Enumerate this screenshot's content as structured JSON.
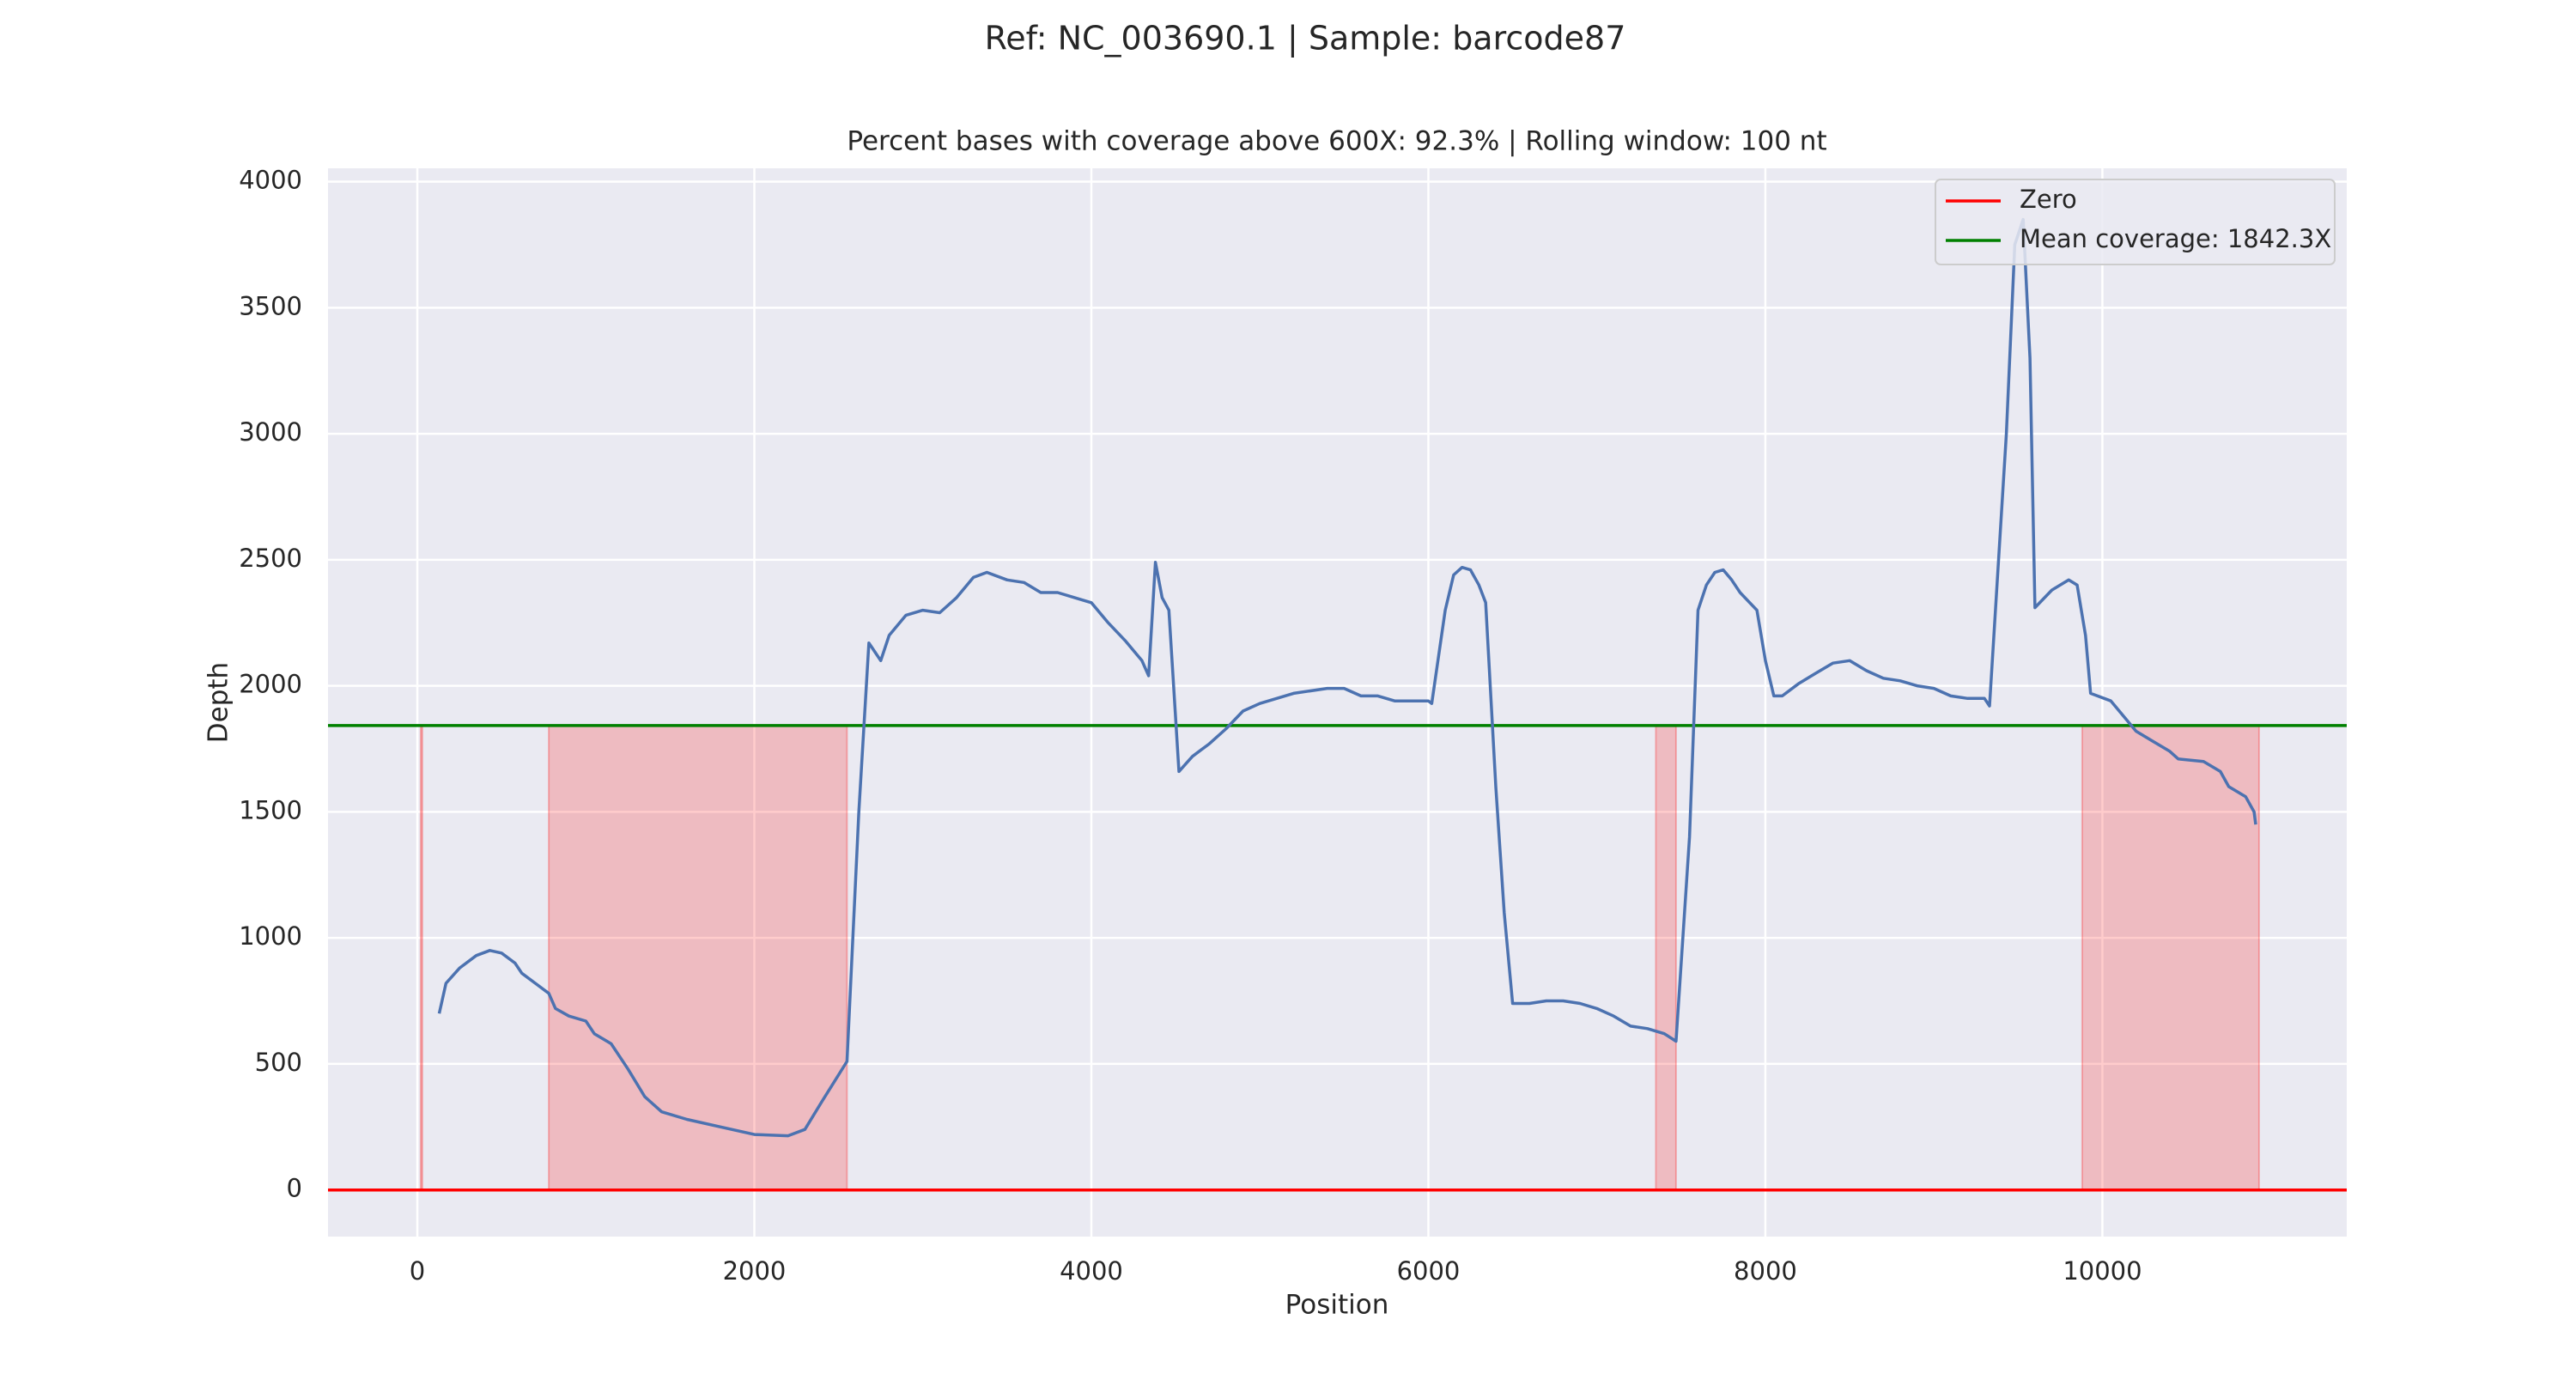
{
  "chart_data": {
    "type": "line",
    "title": "Ref: NC_003690.1 | Sample: barcode87",
    "subtitle": "Percent bases with coverage above 600X:  92.3% | Rolling window: 100 nt",
    "x_label": "Position",
    "y_label": "Depth",
    "xlim": [
      -530,
      11450
    ],
    "ylim": [
      -185,
      4053
    ],
    "xticks": [
      0,
      2000,
      4000,
      6000,
      8000,
      10000
    ],
    "yticks": [
      0,
      500,
      1000,
      1500,
      2000,
      2500,
      3000,
      3500,
      4000
    ],
    "grid": true,
    "legend": "upper right",
    "series": [
      {
        "color": "#4c72b0",
        "x": [
          130,
          170,
          250,
          350,
          430,
          500,
          580,
          620,
          700,
          780,
          820,
          900,
          1000,
          1050,
          1150,
          1250,
          1350,
          1450,
          1600,
          1800,
          2000,
          2200,
          2300,
          2400,
          2550,
          2620,
          2680,
          2750,
          2800,
          2900,
          3000,
          3100,
          3200,
          3300,
          3380,
          3500,
          3600,
          3700,
          3800,
          3900,
          4000,
          4100,
          4200,
          4300,
          4340,
          4380,
          4420,
          4460,
          4520,
          4600,
          4700,
          4800,
          4900,
          5000,
          5200,
          5400,
          5500,
          5600,
          5700,
          5800,
          6000,
          6020,
          6100,
          6150,
          6200,
          6250,
          6300,
          6340,
          6400,
          6450,
          6500,
          6600,
          6700,
          6800,
          6900,
          7000,
          7100,
          7200,
          7300,
          7400,
          7470,
          7550,
          7600,
          7650,
          7700,
          7750,
          7800,
          7850,
          7950,
          8000,
          8050,
          8100,
          8200,
          8300,
          8400,
          8500,
          8600,
          8700,
          8800,
          8900,
          9000,
          9100,
          9200,
          9300,
          9330,
          9430,
          9480,
          9530,
          9570,
          9600,
          9700,
          9800,
          9850,
          9900,
          9930,
          10050,
          10100,
          10200,
          10300,
          10400,
          10450,
          10600,
          10700,
          10750,
          10850,
          10900,
          10910
        ],
        "values": [
          700,
          820,
          880,
          930,
          950,
          940,
          900,
          860,
          820,
          780,
          720,
          690,
          670,
          620,
          580,
          480,
          370,
          310,
          280,
          250,
          220,
          215,
          240,
          350,
          510,
          1500,
          2170,
          2100,
          2200,
          2280,
          2300,
          2290,
          2350,
          2430,
          2450,
          2420,
          2410,
          2370,
          2370,
          2350,
          2330,
          2250,
          2180,
          2100,
          2040,
          2490,
          2350,
          2300,
          1660,
          1720,
          1770,
          1830,
          1900,
          1930,
          1970,
          1990,
          1990,
          1960,
          1960,
          1940,
          1940,
          1930,
          2300,
          2440,
          2470,
          2460,
          2400,
          2330,
          1600,
          1100,
          740,
          740,
          750,
          750,
          740,
          720,
          690,
          650,
          640,
          620,
          590,
          1400,
          2300,
          2400,
          2450,
          2460,
          2420,
          2370,
          2300,
          2100,
          1960,
          1960,
          2010,
          2050,
          2090,
          2100,
          2060,
          2030,
          2020,
          2000,
          1990,
          1960,
          1950,
          1950,
          1920,
          3000,
          3750,
          3850,
          3300,
          2310,
          2380,
          2420,
          2400,
          2200,
          1970,
          1940,
          1900,
          1820,
          1780,
          1740,
          1710,
          1700,
          1660,
          1600,
          1560,
          1500,
          1450
        ]
      }
    ],
    "hlines": [
      {
        "name": "Zero",
        "color": "#ff0000",
        "value": 0
      },
      {
        "name": "Mean coverage:  1842.3X",
        "color": "#008000",
        "value": 1842.3
      }
    ],
    "spans": [
      [
        20,
        30
      ],
      [
        780,
        2550
      ],
      [
        7350,
        7470
      ],
      [
        9880,
        10930
      ]
    ],
    "span_color": "#ff0000"
  }
}
